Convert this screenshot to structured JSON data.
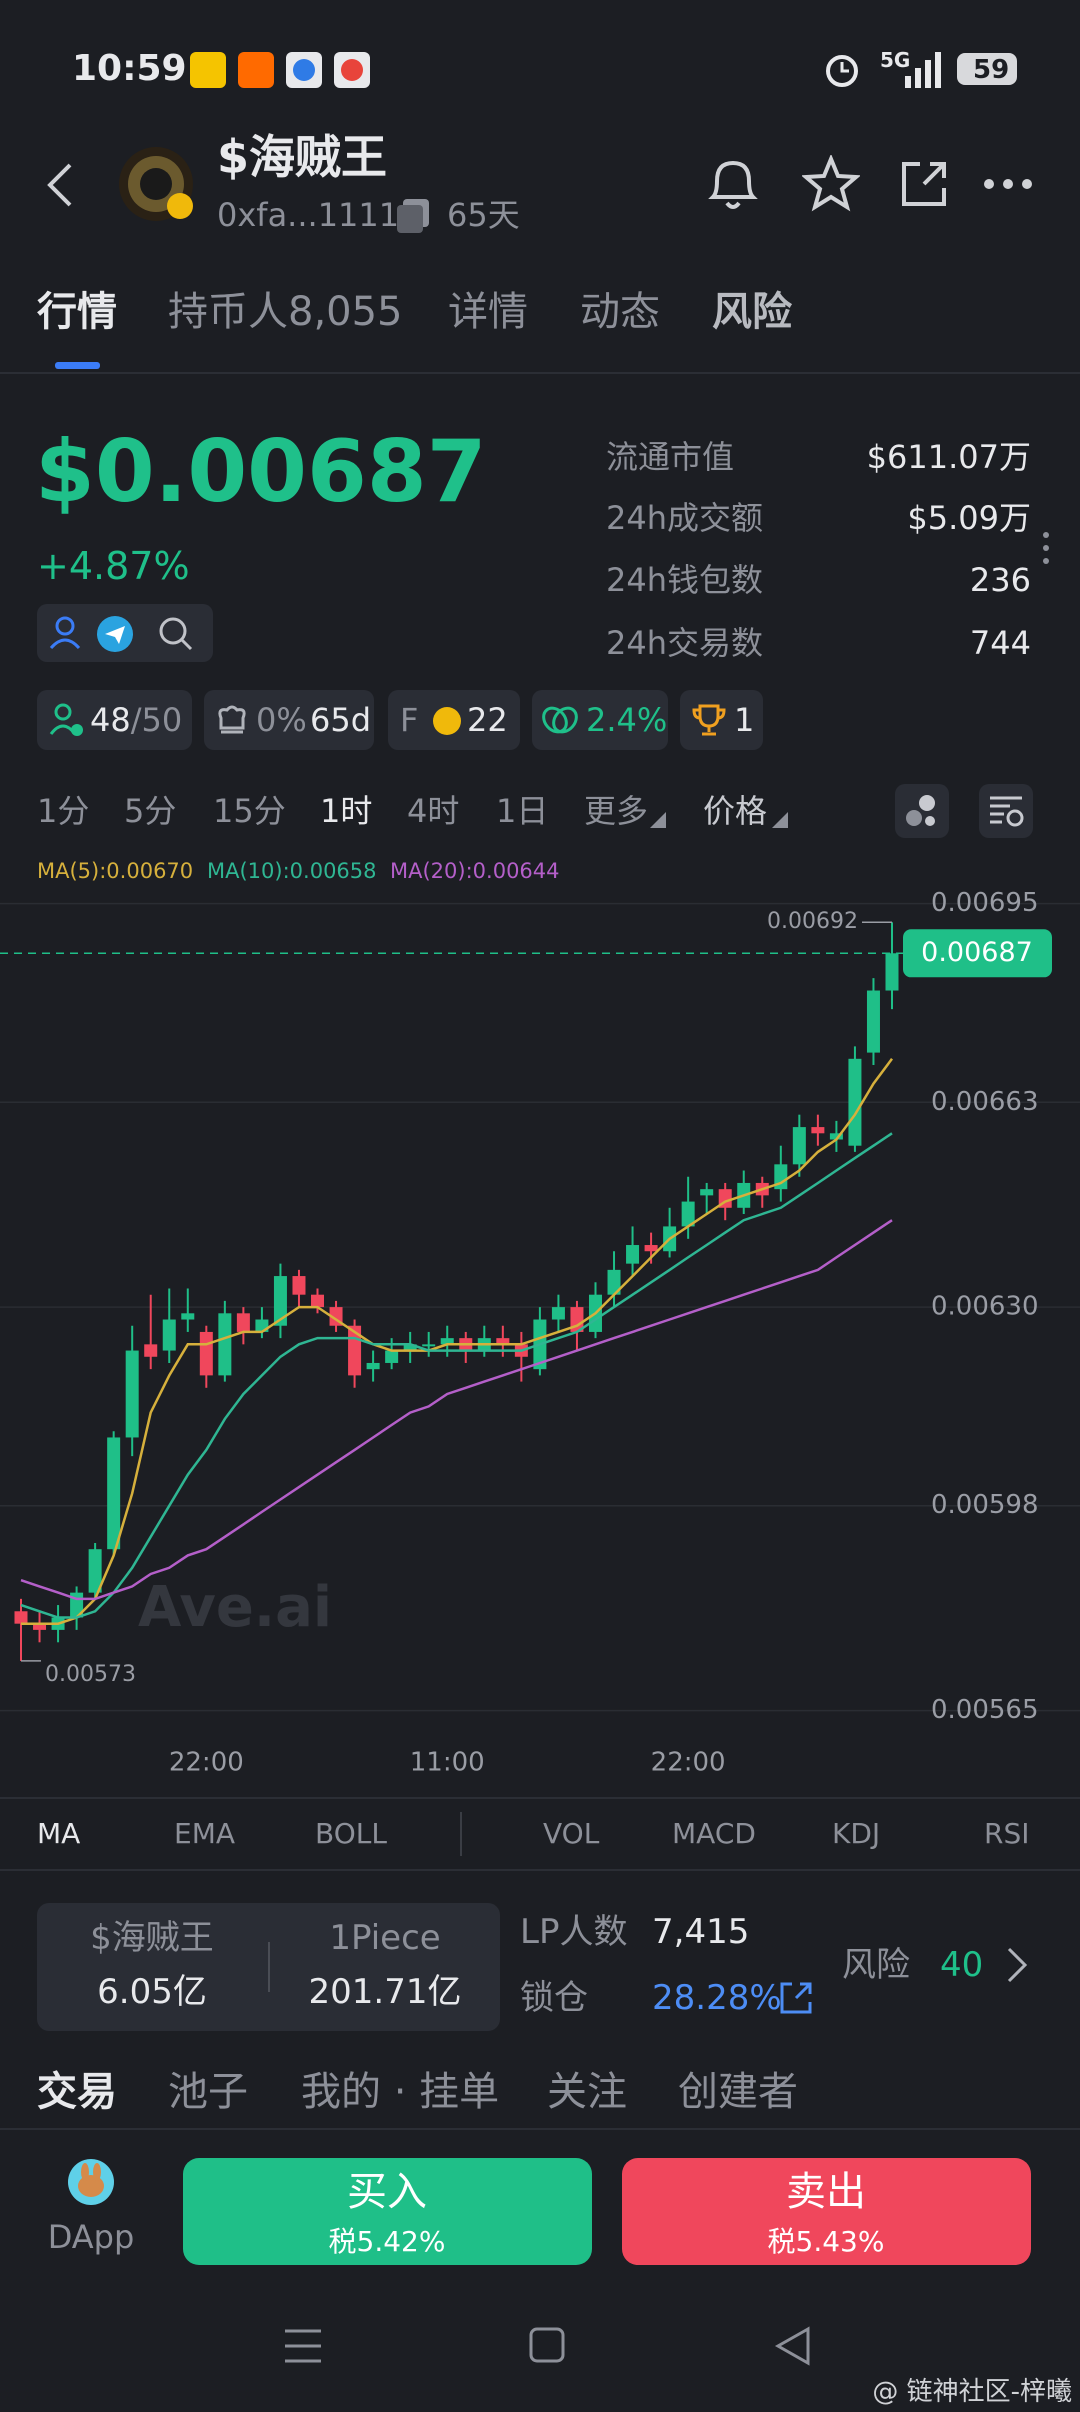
{
  "status_bar": {
    "time": "10:59",
    "network": "5G",
    "battery": "59"
  },
  "header": {
    "title": "$海贼王",
    "address": "0xfa...1111",
    "age": "65天"
  },
  "tabs": [
    "行情",
    "持币人8,055",
    "详情",
    "动态",
    "风险"
  ],
  "price": {
    "value": "$0.00687",
    "change": "+4.87%"
  },
  "stats": [
    {
      "label": "流通市值",
      "value": "$611.07万"
    },
    {
      "label": "24h成交额",
      "value": "$5.09万"
    },
    {
      "label": "24h钱包数",
      "value": "236"
    },
    {
      "label": "24h交易数",
      "value": "744"
    }
  ],
  "badges": {
    "holders": "48",
    "holders_max": "/50",
    "tax_pct": "0%",
    "age": "65d",
    "f_label": "F",
    "f_count": "22",
    "rate": "2.4%",
    "trophy": "1"
  },
  "intervals": [
    "1分",
    "5分",
    "15分",
    "1时",
    "4时",
    "1日",
    "更多",
    "价格"
  ],
  "chart_data": {
    "type": "candlestick",
    "watermark": "Ave.ai",
    "categories": [
      null,
      null,
      null,
      null,
      null,
      null,
      null,
      null,
      null,
      null,
      "22:00",
      null,
      null,
      null,
      null,
      null,
      null,
      null,
      null,
      null,
      null,
      null,
      null,
      "11:00",
      null,
      null,
      null,
      null,
      null,
      null,
      null,
      null,
      null,
      null,
      null,
      null,
      "22:00",
      null,
      null,
      null,
      null,
      null,
      null,
      null,
      null,
      null,
      null,
      null
    ],
    "open": [
      0.00581,
      0.00579,
      0.00578,
      0.0058,
      0.00584,
      0.00591,
      0.00609,
      0.00624,
      0.00623,
      0.00628,
      0.00626,
      0.00619,
      0.00629,
      0.00626,
      0.00627,
      0.00635,
      0.00632,
      0.0063,
      0.00627,
      0.0062,
      0.00621,
      0.00623,
      0.00624,
      0.00624,
      0.00625,
      0.00623,
      0.00625,
      0.00624,
      0.0062,
      0.00628,
      0.0063,
      0.00626,
      0.00632,
      0.00637,
      0.0064,
      0.00639,
      0.00643,
      0.00648,
      0.00649,
      0.00646,
      0.0065,
      0.00649,
      0.00653,
      0.00659,
      0.00657,
      0.00656,
      0.00671,
      0.00681
    ],
    "high": [
      0.00583,
      0.00581,
      0.00582,
      0.00585,
      0.00592,
      0.0061,
      0.00627,
      0.00632,
      0.00633,
      0.00633,
      0.00627,
      0.00631,
      0.0063,
      0.0063,
      0.00637,
      0.00636,
      0.00633,
      0.00631,
      0.00628,
      0.00623,
      0.00625,
      0.00626,
      0.00626,
      0.00627,
      0.00626,
      0.00627,
      0.00627,
      0.00626,
      0.0063,
      0.00632,
      0.00631,
      0.00634,
      0.00639,
      0.00643,
      0.00642,
      0.00646,
      0.00651,
      0.0065,
      0.0065,
      0.00652,
      0.00651,
      0.00656,
      0.00661,
      0.00661,
      0.0066,
      0.00672,
      0.00683,
      0.00692
    ],
    "low": [
      0.00573,
      0.00576,
      0.00576,
      0.00578,
      0.00583,
      0.0059,
      0.00606,
      0.0062,
      0.00621,
      0.00626,
      0.00617,
      0.00618,
      0.00624,
      0.00625,
      0.00625,
      0.0063,
      0.00629,
      0.00626,
      0.00617,
      0.00618,
      0.0062,
      0.00621,
      0.00622,
      0.00622,
      0.00621,
      0.00622,
      0.00622,
      0.00618,
      0.00619,
      0.00626,
      0.00623,
      0.00625,
      0.0063,
      0.00635,
      0.00637,
      0.00638,
      0.00641,
      0.00645,
      0.00644,
      0.00645,
      0.00646,
      0.00647,
      0.00651,
      0.00656,
      0.00655,
      0.00655,
      0.00669,
      0.00678
    ],
    "close": [
      0.00579,
      0.00578,
      0.0058,
      0.00584,
      0.00591,
      0.00609,
      0.00623,
      0.00622,
      0.00628,
      0.00629,
      0.00619,
      0.00629,
      0.00626,
      0.00628,
      0.00635,
      0.00632,
      0.0063,
      0.00627,
      0.00619,
      0.00621,
      0.00623,
      0.00624,
      0.00624,
      0.00625,
      0.00623,
      0.00625,
      0.00624,
      0.00622,
      0.00628,
      0.0063,
      0.00626,
      0.00632,
      0.00636,
      0.0064,
      0.00639,
      0.00643,
      0.00647,
      0.00649,
      0.00646,
      0.0065,
      0.00648,
      0.00653,
      0.00659,
      0.00658,
      0.00658,
      0.0067,
      0.00681,
      0.00687
    ],
    "up_color": "#1fbf88",
    "down_color": "#f0475c",
    "series": [
      {
        "name": "MA(5):0.00670",
        "color": "#d6b03c",
        "values": [
          0.00579,
          0.00579,
          0.00579,
          0.0058,
          0.00583,
          0.0059,
          0.006,
          0.00613,
          0.00619,
          0.00624,
          0.00624,
          0.00625,
          0.00626,
          0.00626,
          0.00628,
          0.0063,
          0.0063,
          0.00628,
          0.00626,
          0.00624,
          0.00623,
          0.00623,
          0.00623,
          0.00624,
          0.00624,
          0.00624,
          0.00624,
          0.00624,
          0.00625,
          0.00626,
          0.00627,
          0.00629,
          0.00632,
          0.00635,
          0.00638,
          0.00641,
          0.00643,
          0.00645,
          0.00647,
          0.00648,
          0.00649,
          0.0065,
          0.00652,
          0.00655,
          0.00657,
          0.00661,
          0.00666,
          0.0067
        ]
      },
      {
        "name": "MA(10):0.00658",
        "color": "#2fb693",
        "values": [
          0.00582,
          0.00581,
          0.0058,
          0.0058,
          0.00581,
          0.00584,
          0.00588,
          0.00593,
          0.00598,
          0.00603,
          0.00607,
          0.00612,
          0.00616,
          0.00619,
          0.00622,
          0.00624,
          0.00625,
          0.00625,
          0.00625,
          0.00624,
          0.00624,
          0.00624,
          0.00623,
          0.00623,
          0.00623,
          0.00623,
          0.00623,
          0.00623,
          0.00624,
          0.00625,
          0.00626,
          0.00628,
          0.0063,
          0.00632,
          0.00634,
          0.00636,
          0.00638,
          0.0064,
          0.00642,
          0.00644,
          0.00645,
          0.00646,
          0.00648,
          0.0065,
          0.00652,
          0.00654,
          0.00656,
          0.00658
        ]
      },
      {
        "name": "MA(20):0.00644",
        "color": "#b45fc9",
        "values": [
          0.00586,
          0.00585,
          0.00584,
          0.00583,
          0.00583,
          0.00584,
          0.00585,
          0.00587,
          0.00588,
          0.0059,
          0.00591,
          0.00593,
          0.00595,
          0.00597,
          0.00599,
          0.00601,
          0.00603,
          0.00605,
          0.00607,
          0.00609,
          0.00611,
          0.00613,
          0.00614,
          0.00616,
          0.00617,
          0.00618,
          0.00619,
          0.0062,
          0.00621,
          0.00622,
          0.00623,
          0.00624,
          0.00625,
          0.00626,
          0.00627,
          0.00628,
          0.00629,
          0.0063,
          0.00631,
          0.00632,
          0.00633,
          0.00634,
          0.00635,
          0.00636,
          0.00638,
          0.0064,
          0.00642,
          0.00644
        ]
      }
    ],
    "ylim": [
      0.00563,
      0.00698
    ],
    "yticks": [
      0.00695,
      0.00663,
      {
        "value": 0.0063,
        "label": "0.00630"
      },
      0.00598,
      0.00565
    ],
    "grid": true,
    "last_price": 0.00687,
    "max_label": 0.00692,
    "min_label": 0.00573
  },
  "indicators": [
    "MA",
    "EMA",
    "BOLL",
    "VOL",
    "MACD",
    "KDJ",
    "RSI"
  ],
  "pool": {
    "token_a": "$海贼王",
    "amount_a": "6.05亿",
    "token_b": "1Piece",
    "amount_b": "201.71亿",
    "lp_label": "LP人数",
    "lp_count": "7,415",
    "lock_label": "锁仓",
    "lock_pct": "28.28%",
    "risk_label": "风险",
    "risk_score": "40"
  },
  "bottom_tabs": [
    "交易",
    "池子",
    "我的 · 挂单",
    "关注",
    "创建者"
  ],
  "actions": {
    "dapp": "DApp",
    "buy": "买入",
    "buy_tax": "税5.42%",
    "sell": "卖出",
    "sell_tax": "税5.43%"
  },
  "watermark": "@ 链神社区-梓曦"
}
